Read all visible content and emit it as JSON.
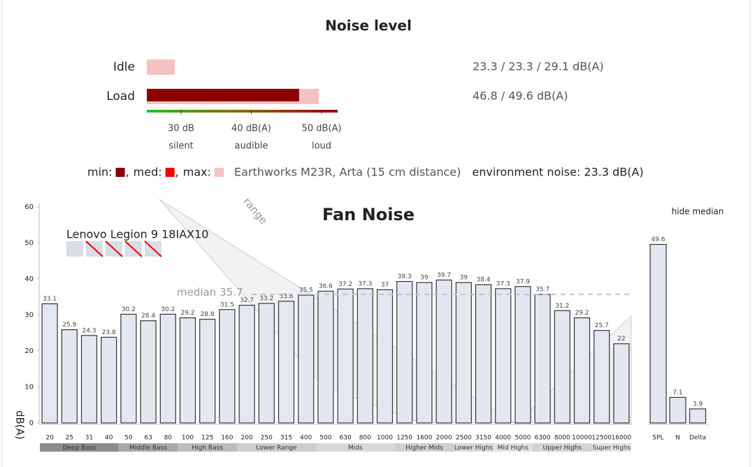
{
  "noise_level": {
    "title": "Noise level",
    "rows": [
      {
        "label": "Idle",
        "min": 23.3,
        "med": 23.3,
        "max": 29.1,
        "text": "23.3 / 23.3 / 29.1 dB(A)"
      },
      {
        "label": "Load",
        "min": 46.8,
        "max": 49.6,
        "text": "46.8 / 49.6 dB(A)"
      }
    ],
    "scale_ticks": [
      {
        "value": 30,
        "label": "30 dB",
        "note": "silent"
      },
      {
        "value": 40,
        "label": "40 dB(A)",
        "note": "audible"
      },
      {
        "value": 50,
        "label": "50 dB(A)",
        "note": "loud"
      }
    ],
    "legend": [
      {
        "label": "min:",
        "color": "#8b0000"
      },
      {
        "label": "med:",
        "color": "#ff0000"
      },
      {
        "label": "max:",
        "color": "#f4c2c2"
      }
    ],
    "separator": ",",
    "setup": "Earthworks M23R, Arta (15 cm distance)",
    "environment": "environment noise: 23.3 dB(A)"
  },
  "chart_data": [
    {
      "type": "bar",
      "title": "Fan Noise",
      "ylabel": "dB(A)",
      "categories": [
        "20",
        "25",
        "31",
        "40",
        "50",
        "63",
        "80",
        "100",
        "125",
        "160",
        "200",
        "250",
        "315",
        "400",
        "500",
        "630",
        "800",
        "1000",
        "1250",
        "1600",
        "2000",
        "2500",
        "3150",
        "4000",
        "5000",
        "6300",
        "8000",
        "10000",
        "12500",
        "16000"
      ],
      "series": [
        {
          "name": "Lenovo Legion 9 18IAX10",
          "color": "#e3e7ef",
          "values": [
            33.1,
            25.9,
            24.3,
            23.8,
            30.2,
            28.4,
            30.2,
            29.2,
            28.8,
            31.5,
            32.7,
            33.2,
            33.8,
            35.5,
            36.6,
            37.2,
            37.3,
            37,
            39.3,
            39,
            39.7,
            39,
            38.4,
            37.3,
            37.9,
            35.7,
            31.2,
            29.2,
            25.7,
            22
          ]
        }
      ],
      "ylim": [
        0,
        60
      ],
      "yticks": [
        0,
        10,
        20,
        30,
        40,
        50,
        60
      ],
      "median": 35.7,
      "median_label": "median",
      "range_label": "range",
      "groups": [
        "Deep Bass",
        "Middle Bass",
        "High Bass",
        "Lower Range",
        "Mids",
        "Higher Mids",
        "Lower Highs",
        "Mid Highs",
        "Upper Highs",
        "Super Highs"
      ],
      "button": "hide median"
    },
    {
      "type": "bar",
      "categories": [
        "SPL",
        "N",
        "Delta"
      ],
      "values": [
        49.6,
        7.1,
        3.9
      ],
      "color": "#e3e7ef",
      "ylim": [
        0,
        60
      ]
    }
  ]
}
